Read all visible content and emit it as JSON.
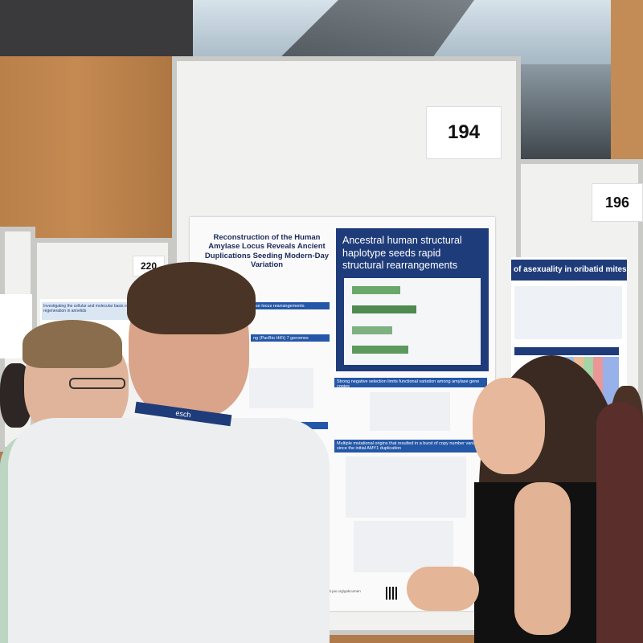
{
  "scene": {
    "description_colors": {
      "wood_wall": "#c58a52",
      "poster_blue": "#1f3c7a",
      "section_blue": "#2457a7"
    }
  },
  "boards": {
    "number_194": "194",
    "number_196": "196",
    "number_220": "220"
  },
  "poster": {
    "title": "Reconstruction of the Human Amylase Locus Reveals Ancient Duplications Seeding Modern-Day Variation",
    "highlight": "Ancestral human structural haplotype seeds rapid structural rearrangements",
    "section_2": "Strong negative selection limits functional variation among amylase gene copies",
    "section_3": "Multiple mutational origins that resulted in a burst of copy number variation since the initial AMY1 duplication",
    "left_section_1": "ase locus rearrangements",
    "left_section_2": "ng (PacBio HiFi) 7 genomes",
    "left_section_3": "es at the human amylase locus",
    "footer_url": "lab.jax.org/gokcumen"
  },
  "poster_196": {
    "title": "of asexuality in oribatid mites"
  },
  "poster_220": {
    "title": "Investigating the cellular and molecular basis of regeneration in annelids"
  },
  "people": {
    "lanyard_text": "esch"
  }
}
